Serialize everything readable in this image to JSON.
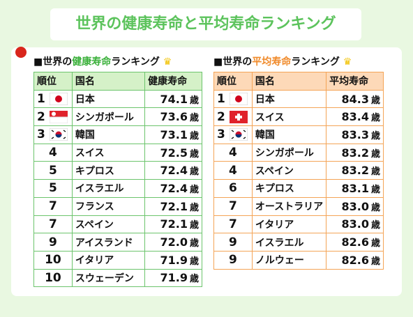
{
  "header": {
    "title": "世界の健康寿命と平均寿命ランキング"
  },
  "left": {
    "heading": {
      "prefix": "■世界の",
      "highlight": "健康寿命",
      "suffix": "ランキング"
    },
    "columns": [
      "順位",
      "国名",
      "健康寿命"
    ],
    "rows": [
      [
        "1",
        "日本",
        "74.1",
        "歳"
      ],
      [
        "2",
        "シンガポール",
        "73.6",
        "歳"
      ],
      [
        "3",
        "韓国",
        "73.1",
        "歳"
      ],
      [
        "4",
        "スイス",
        "72.5",
        "歳"
      ],
      [
        "5",
        "キプロス",
        "72.4",
        "歳"
      ],
      [
        "5",
        "イスラエル",
        "72.4",
        "歳"
      ],
      [
        "7",
        "フランス",
        "72.1",
        "歳"
      ],
      [
        "7",
        "スペイン",
        "72.1",
        "歳"
      ],
      [
        "9",
        "アイスランド",
        "72.0",
        "歳"
      ],
      [
        "10",
        "イタリア",
        "71.9",
        "歳"
      ],
      [
        "10",
        "スウェーデン",
        "71.9",
        "歳"
      ]
    ]
  },
  "right": {
    "heading": {
      "prefix": "■世界の",
      "highlight": "平均寿命",
      "suffix": "ランキング"
    },
    "columns": [
      "順位",
      "国名",
      "平均寿命"
    ],
    "rows": [
      [
        "1",
        "日本",
        "84.3",
        "歳"
      ],
      [
        "2",
        "スイス",
        "83.4",
        "歳"
      ],
      [
        "3",
        "韓国",
        "83.3",
        "歳"
      ],
      [
        "4",
        "シンガポール",
        "83.2",
        "歳"
      ],
      [
        "4",
        "スペイン",
        "83.2",
        "歳"
      ],
      [
        "6",
        "キプロス",
        "83.1",
        "歳"
      ],
      [
        "7",
        "オーストラリア",
        "83.0",
        "歳"
      ],
      [
        "7",
        "イタリア",
        "83.0",
        "歳"
      ],
      [
        "9",
        "イスラエル",
        "82.6",
        "歳"
      ],
      [
        "9",
        "ノルウェー",
        "82.6",
        "歳"
      ]
    ]
  }
}
